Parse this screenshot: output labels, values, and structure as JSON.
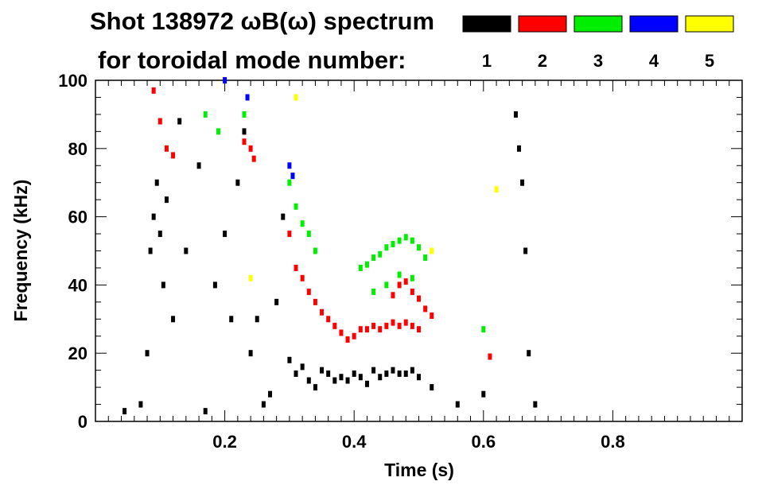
{
  "chart_data": {
    "type": "scatter",
    "title_line1": "Shot 138972 ωB(ω) spectrum",
    "title_line2": "for toroidal mode number:",
    "xlabel": "Time (s)",
    "ylabel": "Frequency (kHz)",
    "xlim": [
      0.0,
      1.0
    ],
    "ylim": [
      0,
      100
    ],
    "x_ticks": [
      0.2,
      0.4,
      0.6,
      0.8
    ],
    "x_tick_labels": [
      "0.2",
      "0.4",
      "0.6",
      "0.8"
    ],
    "y_ticks": [
      0,
      20,
      40,
      60,
      80,
      100
    ],
    "y_tick_labels": [
      "0",
      "20",
      "40",
      "60",
      "80",
      "100"
    ],
    "grid": false,
    "legend_position": "top-right",
    "legend": [
      {
        "label": "1",
        "color": "#000000"
      },
      {
        "label": "2",
        "color": "#ff0000"
      },
      {
        "label": "3",
        "color": "#00ee00"
      },
      {
        "label": "4",
        "color": "#0000ff"
      },
      {
        "label": "5",
        "color": "#ffff00"
      }
    ],
    "series": [
      {
        "name": "1",
        "color": "#000000",
        "points": [
          [
            0.045,
            3
          ],
          [
            0.07,
            5
          ],
          [
            0.08,
            20
          ],
          [
            0.085,
            50
          ],
          [
            0.09,
            60
          ],
          [
            0.095,
            70
          ],
          [
            0.1,
            55
          ],
          [
            0.105,
            40
          ],
          [
            0.11,
            65
          ],
          [
            0.12,
            30
          ],
          [
            0.13,
            88
          ],
          [
            0.14,
            50
          ],
          [
            0.16,
            75
          ],
          [
            0.17,
            3
          ],
          [
            0.185,
            40
          ],
          [
            0.2,
            55
          ],
          [
            0.21,
            30
          ],
          [
            0.22,
            70
          ],
          [
            0.23,
            85
          ],
          [
            0.24,
            20
          ],
          [
            0.25,
            30
          ],
          [
            0.26,
            5
          ],
          [
            0.27,
            8
          ],
          [
            0.28,
            35
          ],
          [
            0.29,
            60
          ],
          [
            0.3,
            18
          ],
          [
            0.31,
            14
          ],
          [
            0.32,
            16
          ],
          [
            0.33,
            12
          ],
          [
            0.34,
            10
          ],
          [
            0.35,
            15
          ],
          [
            0.36,
            14
          ],
          [
            0.37,
            12
          ],
          [
            0.38,
            13
          ],
          [
            0.39,
            12
          ],
          [
            0.4,
            14
          ],
          [
            0.41,
            13
          ],
          [
            0.42,
            11
          ],
          [
            0.43,
            15
          ],
          [
            0.44,
            13
          ],
          [
            0.45,
            14
          ],
          [
            0.46,
            15
          ],
          [
            0.47,
            14
          ],
          [
            0.48,
            14
          ],
          [
            0.49,
            15
          ],
          [
            0.5,
            13
          ],
          [
            0.52,
            10
          ],
          [
            0.56,
            5
          ],
          [
            0.6,
            8
          ],
          [
            0.65,
            90
          ],
          [
            0.655,
            80
          ],
          [
            0.66,
            70
          ],
          [
            0.665,
            50
          ],
          [
            0.67,
            20
          ],
          [
            0.68,
            5
          ]
        ]
      },
      {
        "name": "2",
        "color": "#ff0000",
        "points": [
          [
            0.09,
            97
          ],
          [
            0.1,
            88
          ],
          [
            0.11,
            80
          ],
          [
            0.12,
            78
          ],
          [
            0.23,
            82
          ],
          [
            0.24,
            80
          ],
          [
            0.245,
            77
          ],
          [
            0.3,
            55
          ],
          [
            0.31,
            45
          ],
          [
            0.32,
            42
          ],
          [
            0.33,
            38
          ],
          [
            0.34,
            35
          ],
          [
            0.35,
            32
          ],
          [
            0.36,
            30
          ],
          [
            0.37,
            28
          ],
          [
            0.38,
            26
          ],
          [
            0.39,
            24
          ],
          [
            0.4,
            25
          ],
          [
            0.41,
            27
          ],
          [
            0.42,
            27
          ],
          [
            0.43,
            28
          ],
          [
            0.44,
            27
          ],
          [
            0.45,
            28
          ],
          [
            0.46,
            29
          ],
          [
            0.47,
            28
          ],
          [
            0.48,
            29
          ],
          [
            0.49,
            28
          ],
          [
            0.5,
            27
          ],
          [
            0.46,
            37
          ],
          [
            0.47,
            40
          ],
          [
            0.48,
            41
          ],
          [
            0.49,
            38
          ],
          [
            0.5,
            36
          ],
          [
            0.51,
            33
          ],
          [
            0.52,
            31
          ],
          [
            0.61,
            19
          ]
        ]
      },
      {
        "name": "3",
        "color": "#00ee00",
        "points": [
          [
            0.17,
            90
          ],
          [
            0.19,
            85
          ],
          [
            0.23,
            90
          ],
          [
            0.3,
            70
          ],
          [
            0.31,
            63
          ],
          [
            0.32,
            58
          ],
          [
            0.33,
            55
          ],
          [
            0.34,
            50
          ],
          [
            0.41,
            45
          ],
          [
            0.42,
            46
          ],
          [
            0.43,
            48
          ],
          [
            0.44,
            49
          ],
          [
            0.45,
            51
          ],
          [
            0.46,
            52
          ],
          [
            0.47,
            53
          ],
          [
            0.48,
            54
          ],
          [
            0.49,
            53
          ],
          [
            0.5,
            51
          ],
          [
            0.51,
            48
          ],
          [
            0.43,
            38
          ],
          [
            0.45,
            40
          ],
          [
            0.47,
            43
          ],
          [
            0.49,
            42
          ],
          [
            0.6,
            27
          ]
        ]
      },
      {
        "name": "4",
        "color": "#0000ff",
        "points": [
          [
            0.2,
            100
          ],
          [
            0.235,
            95
          ],
          [
            0.3,
            75
          ],
          [
            0.305,
            72
          ]
        ]
      },
      {
        "name": "5",
        "color": "#ffff00",
        "points": [
          [
            0.24,
            42
          ],
          [
            0.31,
            95
          ],
          [
            0.52,
            50
          ],
          [
            0.62,
            68
          ]
        ]
      }
    ]
  }
}
